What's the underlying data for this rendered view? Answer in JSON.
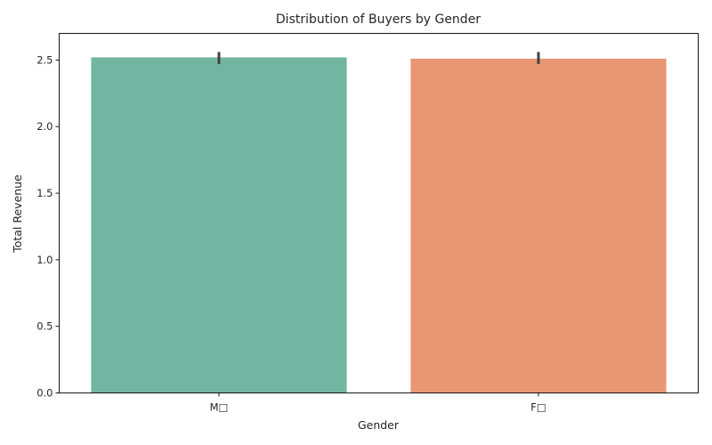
{
  "chart_data": {
    "type": "bar",
    "title": "Distribution of Buyers by Gender",
    "xlabel": "Gender",
    "ylabel": "Total Revenue",
    "categories": [
      "M□",
      "F□"
    ],
    "values": [
      2.52,
      2.51
    ],
    "error_bars": [
      {
        "low": 2.47,
        "high": 2.56
      },
      {
        "low": 2.47,
        "high": 2.56
      }
    ],
    "colors": [
      "#72b6a1",
      "#e99675"
    ],
    "ylim": [
      0,
      2.7
    ],
    "yticks": [
      0.0,
      0.5,
      1.0,
      1.5,
      2.0,
      2.5
    ],
    "ytick_labels": [
      "0.0",
      "0.5",
      "1.0",
      "1.5",
      "2.0",
      "2.5"
    ],
    "grid": false,
    "legend": "none"
  }
}
